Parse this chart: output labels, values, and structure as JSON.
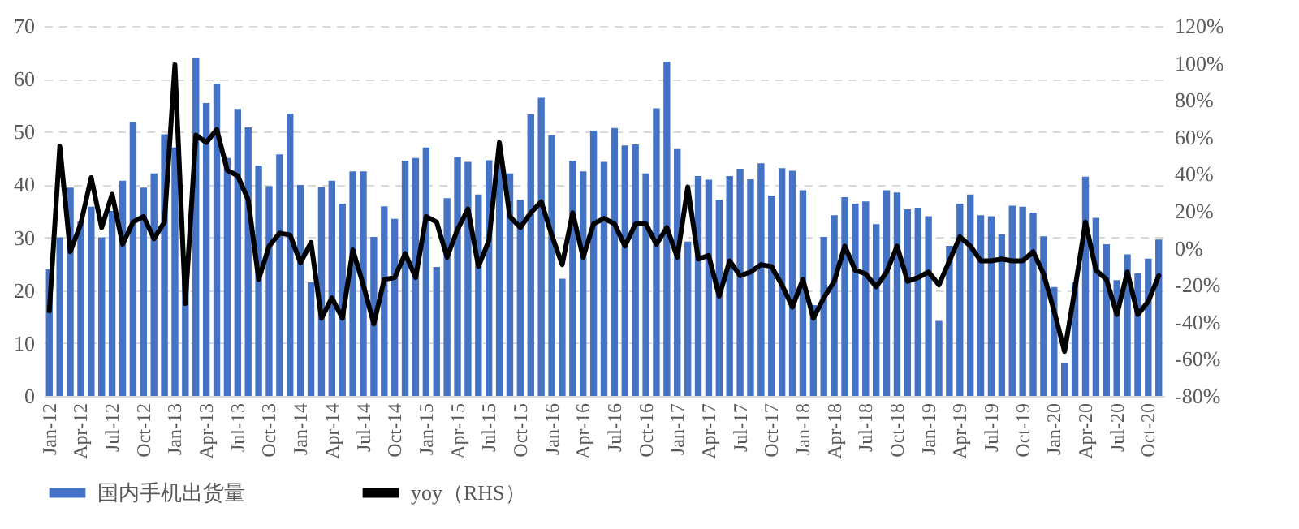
{
  "chart_data": {
    "type": "bar",
    "categories": [
      "Jan-12",
      null,
      null,
      "Apr-12",
      null,
      null,
      "Jul-12",
      null,
      null,
      "Oct-12",
      null,
      null,
      "Jan-13",
      null,
      null,
      "Apr-13",
      null,
      null,
      "Jul-13",
      null,
      null,
      "Oct-13",
      null,
      null,
      "Jan-14",
      null,
      null,
      "Apr-14",
      null,
      null,
      "Jul-14",
      null,
      null,
      "Oct-14",
      null,
      null,
      "Jan-15",
      null,
      null,
      "Apr-15",
      null,
      null,
      "Jul-15",
      null,
      null,
      "Oct-15",
      null,
      null,
      "Jan-16",
      null,
      null,
      "Apr-16",
      null,
      null,
      "Jul-16",
      null,
      null,
      "Oct-16",
      null,
      null,
      "Jan-17",
      null,
      null,
      "Apr-17",
      null,
      null,
      "Jul-17",
      null,
      null,
      "Oct-17",
      null,
      null,
      "Jan-18",
      null,
      null,
      "Apr-18",
      null,
      null,
      "Jul-18",
      null,
      null,
      "Oct-18",
      null,
      null,
      "Jan-19",
      null,
      null,
      "Apr-19",
      null,
      null,
      "Jul-19",
      null,
      null,
      "Oct-19",
      null,
      null,
      "Jan-20",
      null,
      null,
      "Apr-20",
      null,
      null,
      "Jul-20",
      null,
      null,
      "Oct-20",
      null
    ],
    "series": [
      {
        "name": "国内手机出货量",
        "color": "#4472c4",
        "values": [
          24,
          30,
          39.4,
          33,
          35.8,
          30,
          35,
          40.7,
          51.9,
          39.4,
          42.1,
          49.5,
          47,
          22,
          63.9,
          55.4,
          59.1,
          45,
          54.3,
          50.8,
          43.6,
          39.7,
          45.7,
          53.4,
          39.9,
          21.5,
          39.5,
          40.7,
          36.4,
          42.5,
          42.5,
          30.1,
          35.9,
          33.5,
          44.5,
          45,
          47,
          24.4,
          37.4,
          45.2,
          44.3,
          38.1,
          44.6,
          45,
          42.1,
          37.1,
          53.3,
          56.4,
          49.3,
          22.2,
          44.5,
          42.5,
          50.2,
          44.3,
          50.7,
          47.4,
          47.6,
          42.1,
          54.4,
          63.2,
          46.7,
          29.2,
          41.6,
          40.9,
          37.1,
          41.6,
          43,
          41,
          44,
          37.9,
          43.1,
          42.6,
          38.9,
          17.2,
          30.1,
          34.2,
          37.6,
          36.4,
          36.8,
          32.5,
          38.9,
          38.5,
          35.3,
          35.6,
          34,
          14.2,
          28.4,
          36.4,
          38.1,
          34.2,
          34,
          30.6,
          36,
          35.8,
          34.7,
          30.2,
          20.6,
          6.2,
          21.5,
          41.5,
          33.7,
          28.7,
          21.9,
          26.8,
          23.2,
          26,
          29.6
        ]
      },
      {
        "name": "yoy（RHS）",
        "type": "line",
        "axis": "y2",
        "color": "#000000",
        "values": [
          -34,
          55,
          -2,
          13,
          38,
          11,
          29,
          2,
          14,
          17,
          5,
          14,
          99,
          -30,
          61,
          57,
          64,
          42,
          39,
          26,
          -17,
          1,
          8,
          7,
          -8,
          3,
          -38,
          -27,
          -38,
          -1,
          -20,
          -41,
          -17,
          -16,
          -3,
          -16,
          17,
          14,
          -5,
          10,
          21,
          -10,
          4,
          57,
          17,
          11,
          19,
          25,
          7,
          -9,
          19,
          -5,
          13,
          16,
          13,
          1,
          13,
          13,
          2,
          11,
          -5,
          33,
          -6,
          -4,
          -26,
          -7,
          -15,
          -13,
          -9,
          -10,
          -20,
          -32,
          -17,
          -38,
          -27,
          -18,
          1,
          -12,
          -14,
          -21,
          -13,
          1,
          -18,
          -16,
          -13,
          -20,
          -7,
          6,
          1,
          -7,
          -7,
          -6,
          -7,
          -7,
          -2,
          -14,
          -34,
          -56,
          -22,
          14,
          -12,
          -17,
          -36,
          -13,
          -36,
          -29,
          -15
        ]
      }
    ],
    "ylim": [
      0,
      70
    ],
    "yticks": [
      0,
      10,
      20,
      30,
      40,
      50,
      60,
      70
    ],
    "y2lim": [
      -80,
      120
    ],
    "y2ticks": [
      {
        "value": -80,
        "label": "-80%"
      },
      {
        "value": -60,
        "label": "-60%"
      },
      {
        "value": -40,
        "label": "-40%"
      },
      {
        "value": -20,
        "label": "-20%"
      },
      {
        "value": 0,
        "label": "0%"
      },
      {
        "value": 20,
        "label": "20%"
      },
      {
        "value": 40,
        "label": "40%"
      },
      {
        "value": 60,
        "label": "60%"
      },
      {
        "value": 80,
        "label": "80%"
      },
      {
        "value": 100,
        "label": "100%"
      },
      {
        "value": 120,
        "label": "120%"
      }
    ],
    "grid": "y",
    "legend": "bottom"
  }
}
